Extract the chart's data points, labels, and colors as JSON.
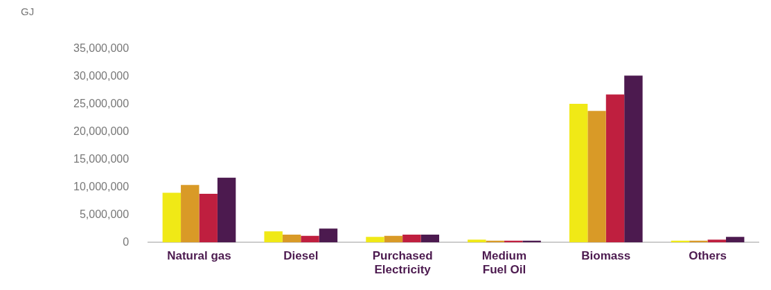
{
  "chart_data": {
    "type": "bar",
    "ylabel": "GJ",
    "categories": [
      "Natural gas",
      "Diesel",
      "Purchased Electricity",
      "Medium Fuel Oil",
      "Biomass",
      "Others"
    ],
    "series": [
      {
        "color": "#f0e916",
        "values": [
          9000000,
          2000000,
          1000000,
          500000,
          25100000,
          300000
        ]
      },
      {
        "color": "#d99a27",
        "values": [
          10400000,
          1400000,
          1200000,
          300000,
          23800000,
          300000
        ]
      },
      {
        "color": "#bf1f3f",
        "values": [
          8800000,
          1200000,
          1400000,
          300000,
          26800000,
          500000
        ]
      },
      {
        "color": "#4c1a4f",
        "values": [
          11700000,
          2500000,
          1400000,
          300000,
          30200000,
          1000000
        ]
      }
    ],
    "ylim": [
      0,
      35000000
    ],
    "yticks": [
      0,
      {
        "value": 5000000,
        "label": "5,000,000"
      },
      {
        "value": 10000000,
        "label": "10,000,000"
      },
      {
        "value": 15000000,
        "label": "15,000,000"
      },
      {
        "value": 20000000,
        "label": "20,000,000"
      },
      {
        "value": 25000000,
        "label": "25,000,000"
      },
      {
        "value": 30000000,
        "label": "30,000,000"
      },
      {
        "value": 35000000,
        "label": "35,000,000"
      }
    ],
    "grid": false,
    "legend": false
  }
}
